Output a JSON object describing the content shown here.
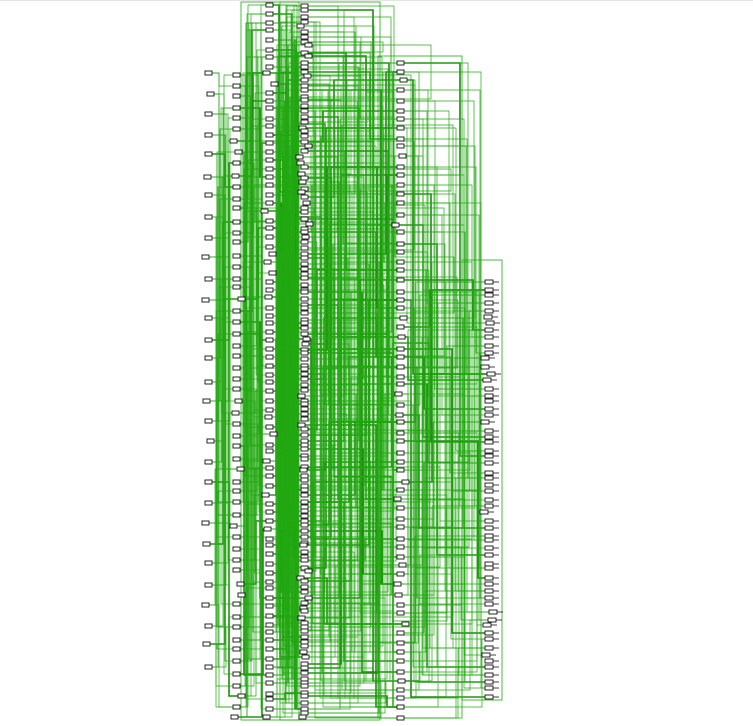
{
  "diagram": {
    "kind": "gate-level netlist schematic",
    "labels": [],
    "colors": {
      "background": "#ffffff",
      "wire": "#22a812",
      "wire_dark": "#1c8c0c",
      "cell": "#111111",
      "top_rule": "#e4e4e4"
    },
    "columns": [
      {
        "id": "inputs",
        "cells": 30
      },
      {
        "id": "stage-1",
        "cells": 58
      },
      {
        "id": "stage-2",
        "cells": 84
      },
      {
        "id": "stage-3",
        "cells": 142
      },
      {
        "id": "stage-4",
        "cells": 70
      },
      {
        "id": "outputs",
        "cells": 60
      }
    ]
  }
}
